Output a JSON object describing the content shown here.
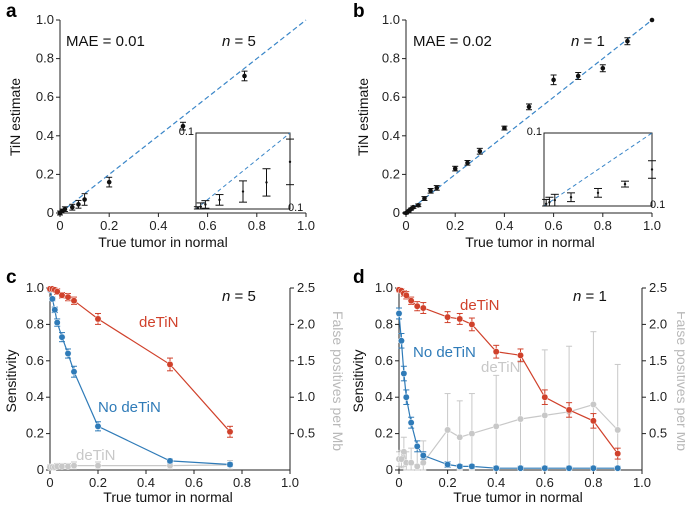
{
  "chart_data": [
    {
      "panel": "a",
      "type": "scatter",
      "xlabel": "True tumor in normal",
      "ylabel": "TiN estimate",
      "xlim": [
        0,
        1
      ],
      "ylim": [
        0,
        1
      ],
      "xticks": [
        "0",
        "0.2",
        "0.4",
        "0.6",
        "0.8",
        "1.0"
      ],
      "yticks": [
        "0",
        "0.2",
        "0.4",
        "0.6",
        "0.8",
        "1.0"
      ],
      "mae": "MAE = 0.01",
      "n": "5",
      "identity_line": true,
      "points": [
        {
          "x": 0.0,
          "y": 0.0,
          "err": 0.01
        },
        {
          "x": 0.01,
          "y": 0.01,
          "err": 0.01
        },
        {
          "x": 0.02,
          "y": 0.02,
          "err": 0.012
        },
        {
          "x": 0.05,
          "y": 0.03,
          "err": 0.015
        },
        {
          "x": 0.075,
          "y": 0.045,
          "err": 0.02
        },
        {
          "x": 0.1,
          "y": 0.07,
          "err": 0.03
        },
        {
          "x": 0.2,
          "y": 0.16,
          "err": 0.025
        },
        {
          "x": 0.5,
          "y": 0.45,
          "err": 0.02
        },
        {
          "x": 0.75,
          "y": 0.71,
          "err": 0.025
        }
      ],
      "inset": {
        "label": "0.1",
        "xlabel": "0.1",
        "points": [
          {
            "x": 0.002,
            "y": 0.001,
            "err": 0.002
          },
          {
            "x": 0.005,
            "y": 0.003,
            "err": 0.005
          },
          {
            "x": 0.01,
            "y": 0.006,
            "err": 0.005
          },
          {
            "x": 0.025,
            "y": 0.012,
            "err": 0.007
          },
          {
            "x": 0.05,
            "y": 0.023,
            "err": 0.014
          },
          {
            "x": 0.075,
            "y": 0.035,
            "err": 0.018
          },
          {
            "x": 0.1,
            "y": 0.062,
            "err": 0.03
          }
        ]
      }
    },
    {
      "panel": "b",
      "type": "scatter",
      "xlabel": "True tumor in normal",
      "ylabel": "TiN estimate",
      "xlim": [
        0,
        1
      ],
      "ylim": [
        0,
        1
      ],
      "xticks": [
        "0",
        "0.2",
        "0.4",
        "0.6",
        "0.8",
        "1.0"
      ],
      "yticks": [
        "0",
        "0.2",
        "0.4",
        "0.6",
        "0.8",
        "1.0"
      ],
      "mae": "MAE = 0.02",
      "n": "1",
      "identity_line": true,
      "points": [
        {
          "x": 0.0,
          "y": 0.0,
          "err": 0.005
        },
        {
          "x": 0.01,
          "y": 0.01,
          "err": 0.005
        },
        {
          "x": 0.02,
          "y": 0.02,
          "err": 0.005
        },
        {
          "x": 0.03,
          "y": 0.03,
          "err": 0.006
        },
        {
          "x": 0.05,
          "y": 0.04,
          "err": 0.007
        },
        {
          "x": 0.075,
          "y": 0.075,
          "err": 0.01
        },
        {
          "x": 0.1,
          "y": 0.115,
          "err": 0.012
        },
        {
          "x": 0.125,
          "y": 0.13,
          "err": 0.012
        },
        {
          "x": 0.2,
          "y": 0.23,
          "err": 0.012
        },
        {
          "x": 0.25,
          "y": 0.26,
          "err": 0.012
        },
        {
          "x": 0.3,
          "y": 0.32,
          "err": 0.015
        },
        {
          "x": 0.4,
          "y": 0.44,
          "err": 0.01
        },
        {
          "x": 0.5,
          "y": 0.55,
          "err": 0.015
        },
        {
          "x": 0.6,
          "y": 0.69,
          "err": 0.025
        },
        {
          "x": 0.7,
          "y": 0.71,
          "err": 0.018
        },
        {
          "x": 0.8,
          "y": 0.75,
          "err": 0.018
        },
        {
          "x": 0.9,
          "y": 0.89,
          "err": 0.018
        },
        {
          "x": 1.0,
          "y": 1.0,
          "err": 0.0
        }
      ],
      "inset": {
        "label": "0.1",
        "xlabel": "0.1",
        "points": [
          {
            "x": 0.002,
            "y": 0.003,
            "err": 0.006
          },
          {
            "x": 0.005,
            "y": 0.005,
            "err": 0.007
          },
          {
            "x": 0.01,
            "y": 0.008,
            "err": 0.008
          },
          {
            "x": 0.025,
            "y": 0.012,
            "err": 0.006
          },
          {
            "x": 0.05,
            "y": 0.018,
            "err": 0.006
          },
          {
            "x": 0.075,
            "y": 0.03,
            "err": 0.004
          },
          {
            "x": 0.1,
            "y": 0.05,
            "err": 0.012
          }
        ]
      }
    },
    {
      "panel": "c",
      "type": "line",
      "xlabel": "True tumor in normal",
      "ylabel": "Sensitivity",
      "y2label": "False positives per Mb",
      "xlim": [
        0,
        1
      ],
      "ylim": [
        0,
        1
      ],
      "y2lim": [
        0,
        2.5
      ],
      "xticks": [
        "0",
        "0.2",
        "0.4",
        "0.6",
        "0.8",
        "1.0"
      ],
      "yticks": [
        "0",
        "0.2",
        "0.4",
        "0.6",
        "0.8",
        "1.0"
      ],
      "y2ticks": [
        "0.5",
        "1.0",
        "1.5",
        "2.0",
        "2.5"
      ],
      "n": "5",
      "series": [
        {
          "name": "deTiN",
          "color": "#d0412b",
          "axis": "left",
          "x": [
            0,
            0.01,
            0.02,
            0.03,
            0.05,
            0.075,
            0.1,
            0.2,
            0.5,
            0.75
          ],
          "y": [
            0.995,
            0.995,
            0.99,
            0.98,
            0.96,
            0.95,
            0.93,
            0.83,
            0.58,
            0.21
          ],
          "err": [
            0.005,
            0.005,
            0.01,
            0.015,
            0.015,
            0.02,
            0.02,
            0.03,
            0.035,
            0.03
          ]
        },
        {
          "name": "No deTiN",
          "color": "#2f7bb8",
          "axis": "left",
          "x": [
            0,
            0.01,
            0.02,
            0.03,
            0.05,
            0.075,
            0.1,
            0.2,
            0.5,
            0.75
          ],
          "y": [
            0.99,
            0.94,
            0.88,
            0.81,
            0.73,
            0.64,
            0.54,
            0.24,
            0.05,
            0.03
          ],
          "err": [
            0.005,
            0.01,
            0.015,
            0.02,
            0.025,
            0.025,
            0.03,
            0.025,
            0.01,
            0.01
          ]
        },
        {
          "name": "deTiN",
          "color": "#c8c8c8",
          "axis": "right",
          "x": [
            0,
            0.01,
            0.02,
            0.03,
            0.05,
            0.075,
            0.1,
            0.2,
            0.5,
            0.75
          ],
          "y": [
            0.04,
            0.04,
            0.04,
            0.05,
            0.05,
            0.05,
            0.06,
            0.06,
            0.06,
            0.07
          ],
          "err": [
            0.03,
            0.03,
            0.03,
            0.04,
            0.04,
            0.04,
            0.05,
            0.05,
            0.05,
            0.06
          ]
        }
      ]
    },
    {
      "panel": "d",
      "type": "line",
      "xlabel": "True tumor in normal",
      "ylabel": "Sensitivity",
      "y2label": "False positives per Mb",
      "xlim": [
        0,
        1
      ],
      "ylim": [
        0,
        1
      ],
      "y2lim": [
        0,
        2.5
      ],
      "xticks": [
        "0",
        "0.2",
        "0.4",
        "0.6",
        "0.8",
        "1.0"
      ],
      "yticks": [
        "0",
        "0.2",
        "0.4",
        "0.6",
        "0.8",
        "1.0"
      ],
      "y2ticks": [
        "0.5",
        "1.0",
        "1.5",
        "2.0",
        "2.5"
      ],
      "n": "1",
      "series": [
        {
          "name": "deTiN",
          "color": "#d0412b",
          "axis": "left",
          "x": [
            0,
            0.01,
            0.02,
            0.03,
            0.05,
            0.075,
            0.1,
            0.2,
            0.25,
            0.3,
            0.4,
            0.5,
            0.6,
            0.7,
            0.8,
            0.9
          ],
          "y": [
            0.99,
            0.985,
            0.97,
            0.96,
            0.93,
            0.9,
            0.89,
            0.84,
            0.83,
            0.8,
            0.65,
            0.63,
            0.4,
            0.33,
            0.27,
            0.09
          ],
          "err": [
            0.01,
            0.01,
            0.015,
            0.02,
            0.02,
            0.025,
            0.03,
            0.03,
            0.03,
            0.035,
            0.035,
            0.035,
            0.04,
            0.04,
            0.04,
            0.03
          ]
        },
        {
          "name": "No deTiN",
          "color": "#2f7bb8",
          "axis": "left",
          "x": [
            0,
            0.01,
            0.02,
            0.03,
            0.05,
            0.075,
            0.1,
            0.2,
            0.25,
            0.3,
            0.4,
            0.5,
            0.6,
            0.7,
            0.8,
            0.9
          ],
          "y": [
            0.86,
            0.71,
            0.53,
            0.4,
            0.26,
            0.13,
            0.08,
            0.03,
            0.02,
            0.02,
            0.01,
            0.01,
            0.01,
            0.01,
            0.01,
            0.01
          ],
          "err": [
            0.03,
            0.04,
            0.04,
            0.04,
            0.03,
            0.03,
            0.02,
            0.015,
            0.01,
            0.01,
            0.01,
            0.01,
            0.01,
            0.01,
            0.01,
            0.01
          ]
        },
        {
          "name": "deTiN",
          "color": "#c8c8c8",
          "axis": "right",
          "x": [
            0,
            0.01,
            0.02,
            0.03,
            0.05,
            0.075,
            0.1,
            0.2,
            0.25,
            0.3,
            0.4,
            0.5,
            0.6,
            0.7,
            0.8,
            0.9
          ],
          "y": [
            0.15,
            0.15,
            0.25,
            0.1,
            0.1,
            0.05,
            0.1,
            0.55,
            0.45,
            0.5,
            0.6,
            0.7,
            0.75,
            0.8,
            0.9,
            0.55
          ],
          "err": [
            0.1,
            0.12,
            0.2,
            0.15,
            0.2,
            0.25,
            0.3,
            0.5,
            0.5,
            0.55,
            0.7,
            0.8,
            0.9,
            0.9,
            1.0,
            0.9
          ]
        }
      ]
    }
  ]
}
